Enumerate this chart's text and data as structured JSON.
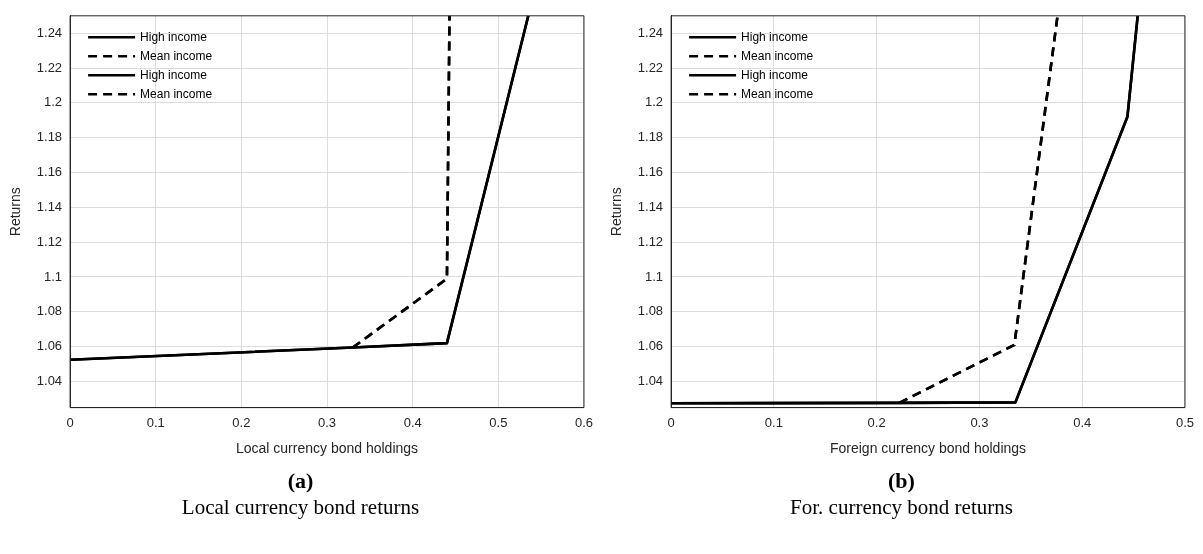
{
  "chart_data": [
    {
      "type": "line",
      "title": "(a)",
      "subtitle": "Local currency bond returns",
      "xlabel": "Local currency bond holdings",
      "ylabel": "Returns",
      "xlim": [
        0,
        0.6
      ],
      "xticks": [
        0,
        0.1,
        0.2,
        0.3,
        0.4,
        0.5,
        0.6
      ],
      "ylim": [
        1.025,
        1.25
      ],
      "yticks": [
        1.04,
        1.06,
        1.08,
        1.1,
        1.12,
        1.14,
        1.16,
        1.18,
        1.2,
        1.22,
        1.24
      ],
      "grid": true,
      "legend": "top left",
      "marker": "none",
      "series": [
        {
          "name": "High income",
          "color": "#000000",
          "line_style": "solid",
          "x": [
            0,
            0.33,
            0.44,
            0.535
          ],
          "values": [
            1.0525,
            1.0595,
            1.062,
            1.25
          ]
        },
        {
          "name": "Mean income",
          "color": "#000000",
          "line_style": "dashed",
          "x": [
            0.33,
            0.44,
            0.443
          ],
          "values": [
            1.0595,
            1.099,
            1.25
          ]
        },
        {
          "name": "High income",
          "color": "#000000",
          "line_style": "solid",
          "x": [
            0,
            0.33,
            0.44,
            0.535
          ],
          "values": [
            1.0525,
            1.0595,
            1.062,
            1.25
          ]
        },
        {
          "name": "Mean income",
          "color": "#000000",
          "line_style": "dashed",
          "x": [
            0.33,
            0.44,
            0.443
          ],
          "values": [
            1.0595,
            1.099,
            1.25
          ]
        }
      ]
    },
    {
      "type": "line",
      "title": "(b)",
      "subtitle": "For. currency bond returns",
      "xlabel": "Foreign currency bond holdings",
      "ylabel": "Returns",
      "xlim": [
        0,
        0.5
      ],
      "xticks": [
        0,
        0.1,
        0.2,
        0.3,
        0.4,
        0.5
      ],
      "ylim": [
        1.025,
        1.25
      ],
      "yticks": [
        1.04,
        1.06,
        1.08,
        1.1,
        1.12,
        1.14,
        1.16,
        1.18,
        1.2,
        1.22,
        1.24
      ],
      "grid": true,
      "legend": "top left",
      "marker": "none",
      "series": [
        {
          "name": "High income",
          "color": "#000000",
          "line_style": "solid",
          "x": [
            0,
            0.222,
            0.335,
            0.444,
            0.454
          ],
          "values": [
            1.0275,
            1.0277,
            1.028,
            1.192,
            1.25
          ]
        },
        {
          "name": "Mean income",
          "color": "#000000",
          "line_style": "dashed",
          "x": [
            0.222,
            0.334,
            0.376
          ],
          "values": [
            1.0277,
            1.061,
            1.25
          ]
        },
        {
          "name": "High income",
          "color": "#000000",
          "line_style": "solid",
          "x": [
            0,
            0.222,
            0.335,
            0.444,
            0.454
          ],
          "values": [
            1.0275,
            1.0277,
            1.028,
            1.192,
            1.25
          ]
        },
        {
          "name": "Mean income",
          "color": "#000000",
          "line_style": "dashed",
          "x": [
            0.222,
            0.334,
            0.376
          ],
          "values": [
            1.0277,
            1.061,
            1.25
          ]
        }
      ]
    }
  ]
}
